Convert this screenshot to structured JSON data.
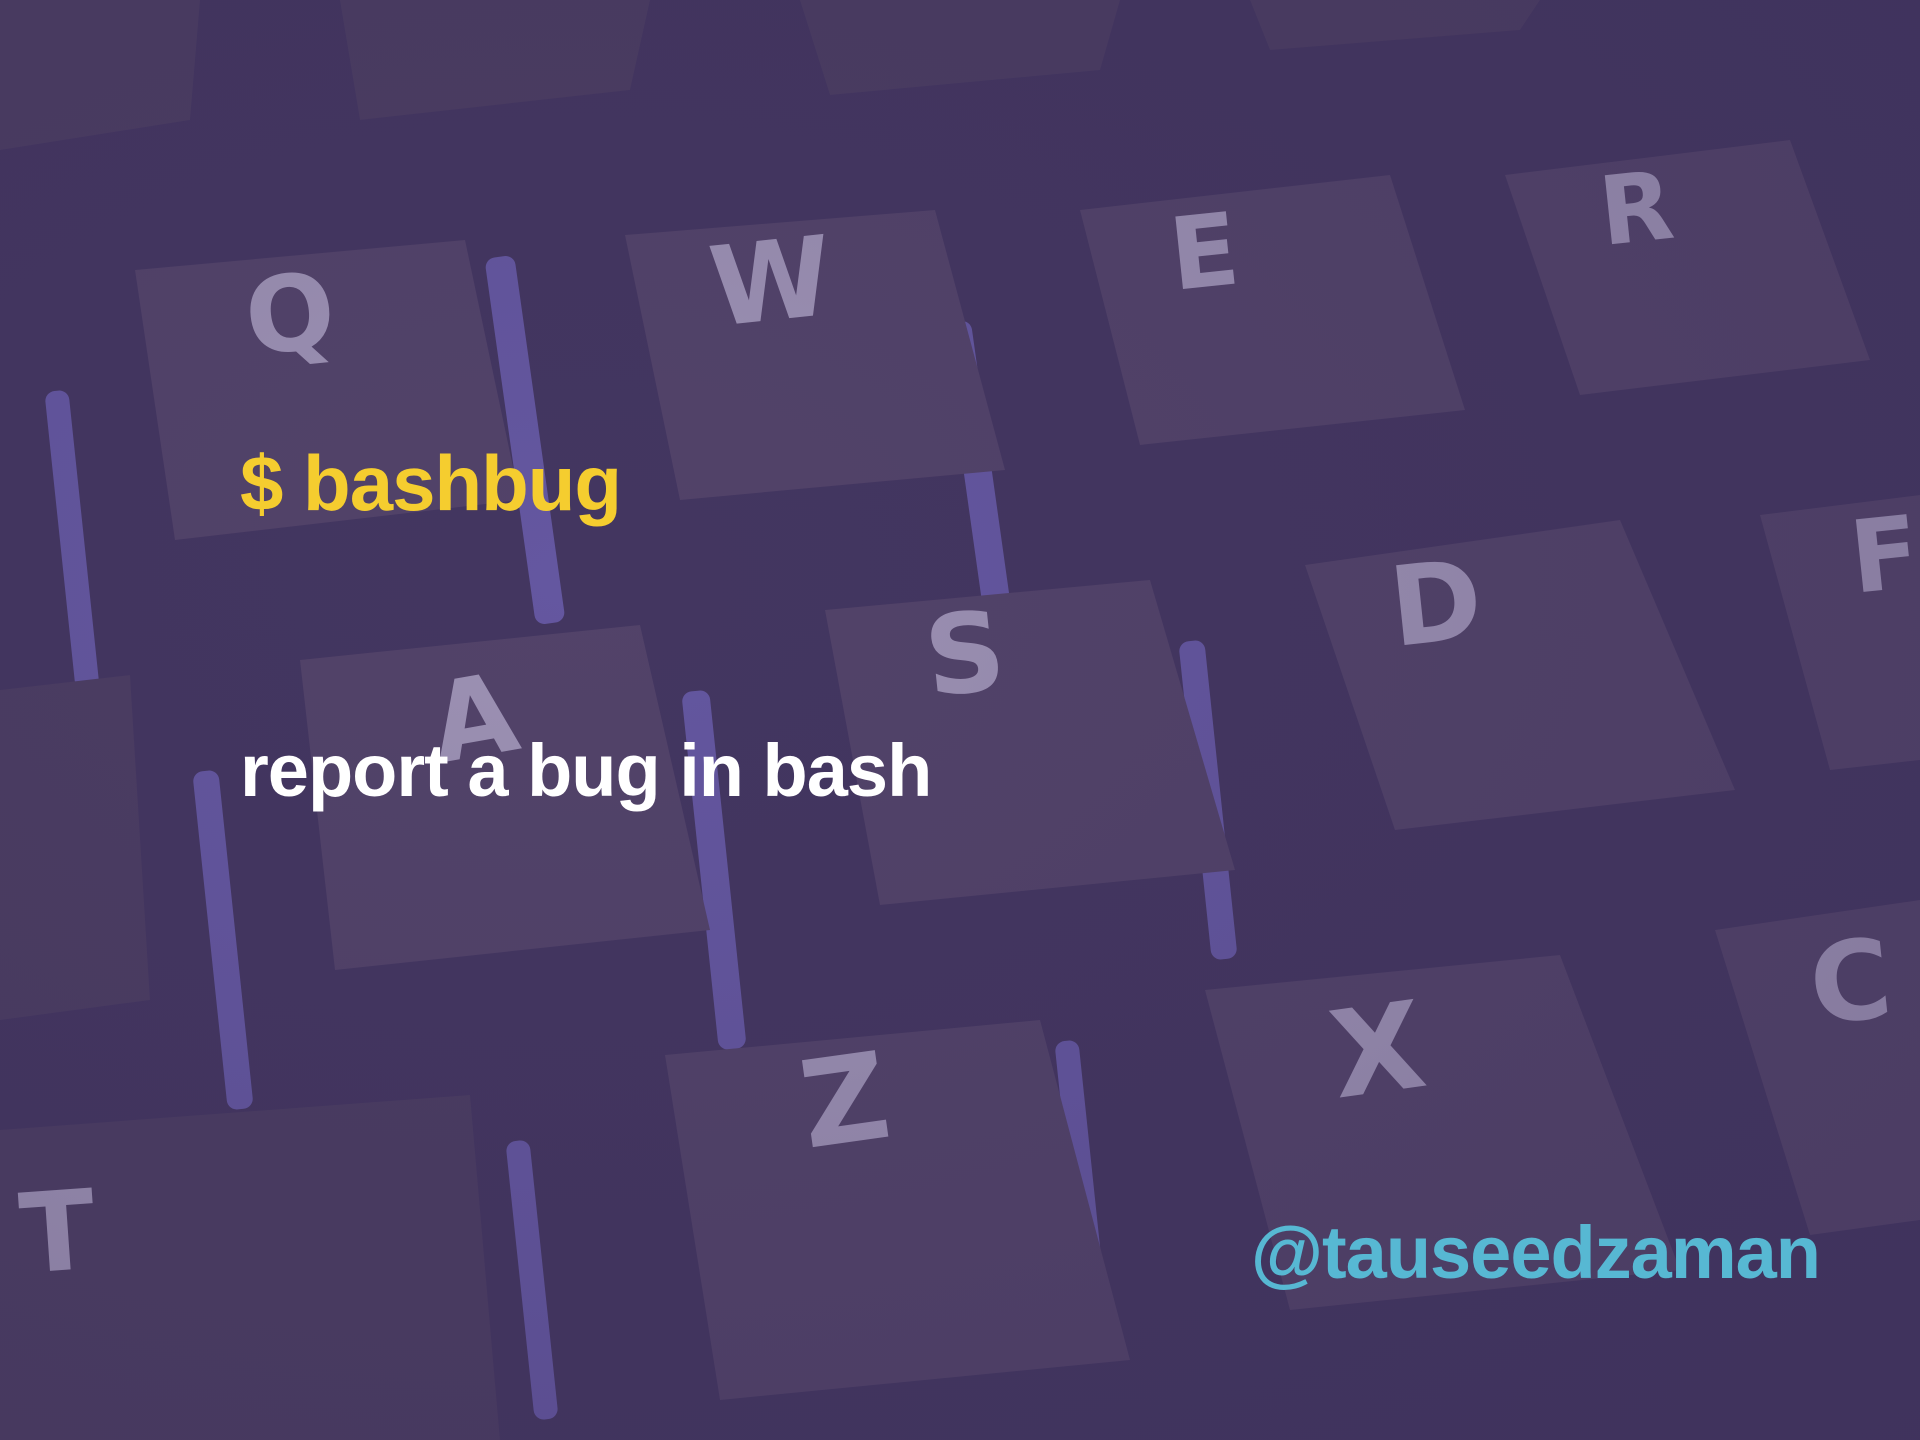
{
  "slide": {
    "command": "$ bashbug",
    "description": "report a bug in bash",
    "author_handle": "@tauseedzaman"
  },
  "keyboard_keys": [
    "Q",
    "W",
    "E",
    "R",
    "A",
    "S",
    "D",
    "F",
    "Z",
    "X",
    "C",
    "T"
  ],
  "colors": {
    "background": "#433660",
    "command": "#f5cd2f",
    "description": "#ffffff",
    "handle": "#57b8d3"
  }
}
